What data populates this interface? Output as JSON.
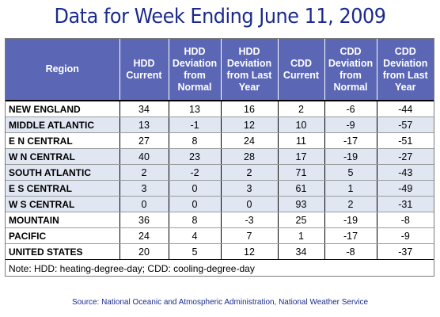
{
  "title": "Data for Week Ending June 11, 2009",
  "table": {
    "headers": [
      "Region",
      "HDD Current",
      "HDD Deviation from Normal",
      "HDD Deviation from Last Year",
      "CDD Current",
      "CDD Deviation from Normal",
      "CDD Deviation from Last Year"
    ],
    "rows": [
      [
        "NEW ENGLAND",
        "34",
        "13",
        "16",
        "2",
        "-6",
        "-44"
      ],
      [
        "MIDDLE ATLANTIC",
        "13",
        "-1",
        "12",
        "10",
        "-9",
        "-57"
      ],
      [
        "E N CENTRAL",
        "27",
        "8",
        "24",
        "11",
        "-17",
        "-51"
      ],
      [
        "W N CENTRAL",
        "40",
        "23",
        "28",
        "17",
        "-19",
        "-27"
      ],
      [
        "SOUTH ATLANTIC",
        "2",
        "-2",
        "2",
        "71",
        "5",
        "-43"
      ],
      [
        "E S CENTRAL",
        "3",
        "0",
        "3",
        "61",
        "1",
        "-49"
      ],
      [
        "W S CENTRAL",
        "0",
        "0",
        "0",
        "93",
        "2",
        "-31"
      ],
      [
        "MOUNTAIN",
        "36",
        "8",
        "-3",
        "25",
        "-19",
        "-8"
      ],
      [
        "PACIFIC",
        "24",
        "4",
        "7",
        "1",
        "-17",
        "-9"
      ],
      [
        "UNITED STATES",
        "20",
        "5",
        "12",
        "34",
        "-8",
        "-37"
      ]
    ]
  },
  "note": "Note: HDD: heating-degree-day; CDD: cooling-degree-day",
  "source": "Source:  National Oceanic and Atmospheric Administration, National Weather Service",
  "colors": {
    "header_bg": "#5b67b4",
    "title": "#1a2a8c",
    "shaded_row": "#e1e6f3"
  }
}
